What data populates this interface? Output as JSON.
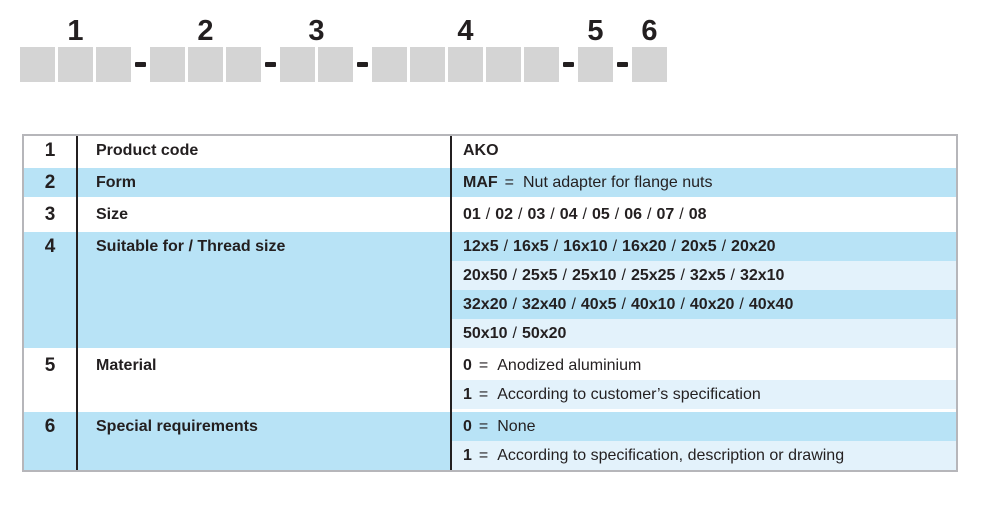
{
  "palette": {
    "row_blue": "#b8e3f6",
    "row_light_blue": "#e3f2fb",
    "box_gray": "#d4d4d4",
    "border_gray": "#b6b6ba",
    "ink": "#231f20"
  },
  "code_diagram": {
    "separator_glyph": "-",
    "groups": [
      {
        "label": "1",
        "boxes": 3
      },
      {
        "label": "2",
        "boxes": 3
      },
      {
        "label": "3",
        "boxes": 2
      },
      {
        "label": "4",
        "boxes": 5
      },
      {
        "label": "5",
        "boxes": 1
      },
      {
        "label": "6",
        "boxes": 1
      }
    ]
  },
  "table": {
    "rows": [
      {
        "num": "1",
        "label": "Product code",
        "shade": "white",
        "lines": [
          {
            "shade": "white",
            "code": "AKO"
          }
        ]
      },
      {
        "num": "2",
        "label": "Form",
        "shade": "blue",
        "lines": [
          {
            "shade": "blue",
            "code": "MAF",
            "text": "Nut adapter for flange nuts"
          }
        ]
      },
      {
        "num": "3",
        "label": "Size",
        "shade": "white",
        "lines": [
          {
            "shade": "white",
            "list": [
              "01",
              "02",
              "03",
              "04",
              "05",
              "06",
              "07",
              "08"
            ]
          }
        ]
      },
      {
        "num": "4",
        "label": "Suitable for / Thread size",
        "shade": "blue",
        "lines": [
          {
            "shade": "blue",
            "list": [
              "12x5",
              "16x5",
              "16x10",
              "16x20",
              "20x5",
              "20x20"
            ]
          },
          {
            "shade": "light",
            "list": [
              "20x50",
              "25x5",
              "25x10",
              "25x25",
              "32x5",
              "32x10"
            ]
          },
          {
            "shade": "blue",
            "list": [
              "32x20",
              "32x40",
              "40x5",
              "40x10",
              "40x20",
              "40x40"
            ]
          },
          {
            "shade": "light",
            "list": [
              "50x10",
              "50x20"
            ]
          }
        ]
      },
      {
        "num": "5",
        "label": "Material",
        "shade": "white",
        "lines": [
          {
            "shade": "white",
            "code": "0",
            "text": "Anodized aluminium"
          },
          {
            "shade": "light",
            "code": "1",
            "text": "According to customer’s specification"
          }
        ]
      },
      {
        "num": "6",
        "label": "Special requirements",
        "shade": "blue",
        "lines": [
          {
            "shade": "blue",
            "code": "0",
            "text": "None"
          },
          {
            "shade": "light",
            "code": "1",
            "text": "According to specification, description or drawing"
          }
        ]
      }
    ]
  }
}
